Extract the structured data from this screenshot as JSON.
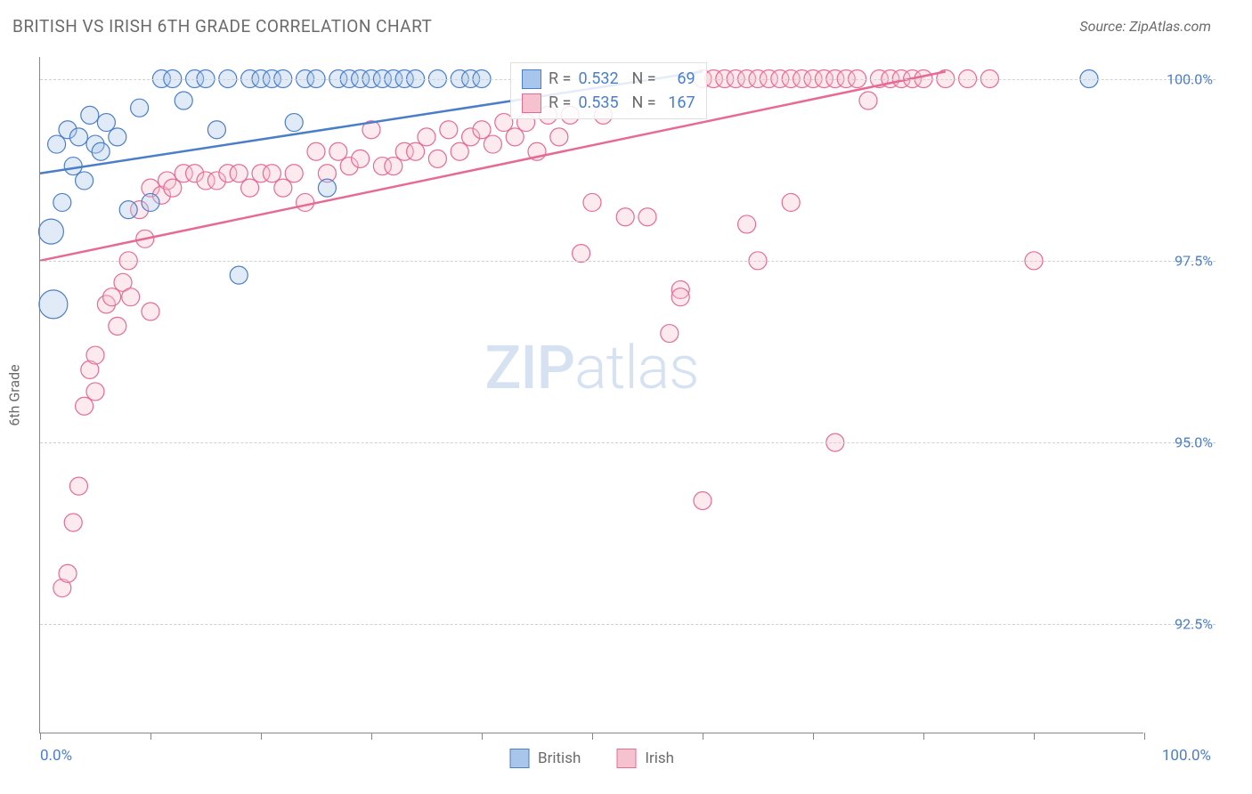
{
  "header": {
    "title": "BRITISH VS IRISH 6TH GRADE CORRELATION CHART",
    "source": "Source: ZipAtlas.com"
  },
  "axes": {
    "y_label": "6th Grade",
    "x_min_label": "0.0%",
    "x_max_label": "100.0%",
    "xlim": [
      0,
      100
    ],
    "ylim": [
      91.0,
      100.3
    ],
    "y_ticks": [
      92.5,
      95.0,
      97.5,
      100.0
    ],
    "y_tick_labels": [
      "92.5%",
      "95.0%",
      "97.5%",
      "100.0%"
    ],
    "x_tick_positions": [
      0,
      10,
      20,
      30,
      40,
      50,
      60,
      70,
      80,
      90,
      100
    ],
    "grid_color": "#d0d0d0",
    "axis_color": "#888888",
    "label_color": "#6b6b6b",
    "value_color": "#4a7ec9",
    "label_fontsize": 16
  },
  "series": {
    "british": {
      "label": "British",
      "fill": "#a8c6ec",
      "stroke": "#4a7ec9",
      "marker_radius": 10,
      "trend": {
        "x1": 0,
        "y1": 98.7,
        "x2": 60,
        "y2": 100.1
      },
      "stats": {
        "R": "0.532",
        "N": "69"
      },
      "points": [
        [
          1.0,
          97.9,
          14
        ],
        [
          1.5,
          99.1,
          10
        ],
        [
          2,
          98.3,
          10
        ],
        [
          2.5,
          99.3,
          10
        ],
        [
          3,
          98.8,
          10
        ],
        [
          3.5,
          99.2,
          10
        ],
        [
          4,
          98.6,
          10
        ],
        [
          4.5,
          99.5,
          10
        ],
        [
          5,
          99.1,
          10
        ],
        [
          5.5,
          99.0,
          10
        ],
        [
          6,
          99.4,
          10
        ],
        [
          7,
          99.2,
          10
        ],
        [
          8,
          98.2,
          10
        ],
        [
          9,
          99.6,
          10
        ],
        [
          10,
          98.3,
          10
        ],
        [
          11,
          100.0,
          10
        ],
        [
          12,
          100.0,
          10
        ],
        [
          13,
          99.7,
          10
        ],
        [
          14,
          100.0,
          10
        ],
        [
          15,
          100.0,
          10
        ],
        [
          16,
          99.3,
          10
        ],
        [
          17,
          100.0,
          10
        ],
        [
          18,
          97.3,
          10
        ],
        [
          19,
          100.0,
          10
        ],
        [
          20,
          100.0,
          10
        ],
        [
          21,
          100.0,
          10
        ],
        [
          22,
          100.0,
          10
        ],
        [
          23,
          99.4,
          10
        ],
        [
          24,
          100.0,
          10
        ],
        [
          25,
          100.0,
          10
        ],
        [
          26,
          98.5,
          10
        ],
        [
          27,
          100.0,
          10
        ],
        [
          28,
          100.0,
          10
        ],
        [
          29,
          100.0,
          10
        ],
        [
          30,
          100.0,
          10
        ],
        [
          31,
          100.0,
          10
        ],
        [
          32,
          100.0,
          10
        ],
        [
          33,
          100.0,
          10
        ],
        [
          34,
          100.0,
          10
        ],
        [
          36,
          100.0,
          10
        ],
        [
          38,
          100.0,
          10
        ],
        [
          39,
          100.0,
          10
        ],
        [
          40,
          100.0,
          10
        ],
        [
          95,
          100.0,
          10
        ],
        [
          1.2,
          96.9,
          16
        ]
      ]
    },
    "irish": {
      "label": "Irish",
      "fill": "#f6c2d0",
      "stroke": "#e76a94",
      "marker_radius": 10,
      "trend": {
        "x1": 0,
        "y1": 97.5,
        "x2": 82,
        "y2": 100.1
      },
      "stats": {
        "R": "0.535",
        "N": "167"
      },
      "points": [
        [
          2,
          93.0,
          10
        ],
        [
          2.5,
          93.2,
          10
        ],
        [
          3,
          93.9,
          10
        ],
        [
          3.5,
          94.4,
          10
        ],
        [
          4,
          95.5,
          10
        ],
        [
          4.5,
          96.0,
          10
        ],
        [
          5,
          96.2,
          10
        ],
        [
          5,
          95.7,
          10
        ],
        [
          6,
          96.9,
          10
        ],
        [
          6.5,
          97.0,
          10
        ],
        [
          7,
          96.6,
          10
        ],
        [
          7.5,
          97.2,
          10
        ],
        [
          8,
          97.5,
          10
        ],
        [
          8.2,
          97.0,
          10
        ],
        [
          9,
          98.2,
          10
        ],
        [
          9.5,
          97.8,
          10
        ],
        [
          10,
          96.8,
          10
        ],
        [
          10,
          98.5,
          10
        ],
        [
          11,
          98.4,
          10
        ],
        [
          11.5,
          98.6,
          10
        ],
        [
          12,
          98.5,
          10
        ],
        [
          13,
          98.7,
          10
        ],
        [
          14,
          98.7,
          10
        ],
        [
          15,
          98.6,
          10
        ],
        [
          16,
          98.6,
          10
        ],
        [
          17,
          98.7,
          10
        ],
        [
          18,
          98.7,
          10
        ],
        [
          19,
          98.5,
          10
        ],
        [
          20,
          98.7,
          10
        ],
        [
          21,
          98.7,
          10
        ],
        [
          22,
          98.5,
          10
        ],
        [
          23,
          98.7,
          10
        ],
        [
          24,
          98.3,
          10
        ],
        [
          25,
          99.0,
          10
        ],
        [
          26,
          98.7,
          10
        ],
        [
          27,
          99.0,
          10
        ],
        [
          28,
          98.8,
          10
        ],
        [
          29,
          98.9,
          10
        ],
        [
          30,
          99.3,
          10
        ],
        [
          31,
          98.8,
          10
        ],
        [
          32,
          98.8,
          10
        ],
        [
          33,
          99.0,
          10
        ],
        [
          34,
          99.0,
          10
        ],
        [
          35,
          99.2,
          10
        ],
        [
          36,
          98.9,
          10
        ],
        [
          37,
          99.3,
          10
        ],
        [
          38,
          99.0,
          10
        ],
        [
          39,
          99.2,
          10
        ],
        [
          40,
          99.3,
          10
        ],
        [
          41,
          99.1,
          10
        ],
        [
          42,
          99.4,
          10
        ],
        [
          43,
          99.2,
          10
        ],
        [
          44,
          99.4,
          10
        ],
        [
          45,
          99.0,
          10
        ],
        [
          46,
          99.5,
          10
        ],
        [
          47,
          99.2,
          10
        ],
        [
          48,
          99.5,
          10
        ],
        [
          49,
          97.6,
          10
        ],
        [
          50,
          98.3,
          10
        ],
        [
          51,
          99.5,
          10
        ],
        [
          53,
          98.1,
          10
        ],
        [
          55,
          98.1,
          10
        ],
        [
          57,
          96.5,
          10
        ],
        [
          58,
          97.1,
          10
        ],
        [
          58,
          97.0,
          10
        ],
        [
          60,
          100.0,
          10
        ],
        [
          60,
          94.2,
          10
        ],
        [
          61,
          100.0,
          10
        ],
        [
          62,
          100.0,
          10
        ],
        [
          63,
          100.0,
          10
        ],
        [
          64,
          98.0,
          10
        ],
        [
          64,
          100.0,
          10
        ],
        [
          65,
          100.0,
          10
        ],
        [
          65,
          97.5,
          10
        ],
        [
          66,
          100.0,
          10
        ],
        [
          67,
          100.0,
          10
        ],
        [
          68,
          100.0,
          10
        ],
        [
          68,
          98.3,
          10
        ],
        [
          69,
          100.0,
          10
        ],
        [
          70,
          100.0,
          10
        ],
        [
          71,
          100.0,
          10
        ],
        [
          72,
          100.0,
          10
        ],
        [
          72,
          95.0,
          10
        ],
        [
          73,
          100.0,
          10
        ],
        [
          74,
          100.0,
          10
        ],
        [
          75,
          99.7,
          10
        ],
        [
          76,
          100.0,
          10
        ],
        [
          77,
          100.0,
          10
        ],
        [
          78,
          100.0,
          10
        ],
        [
          79,
          100.0,
          10
        ],
        [
          80,
          100.0,
          10
        ],
        [
          82,
          100.0,
          10
        ],
        [
          84,
          100.0,
          10
        ],
        [
          86,
          100.0,
          10
        ],
        [
          90,
          97.5,
          10
        ]
      ]
    }
  },
  "watermark": {
    "text_bold": "ZIP",
    "text_light": "atlas"
  },
  "colors": {
    "background": "#ffffff"
  }
}
